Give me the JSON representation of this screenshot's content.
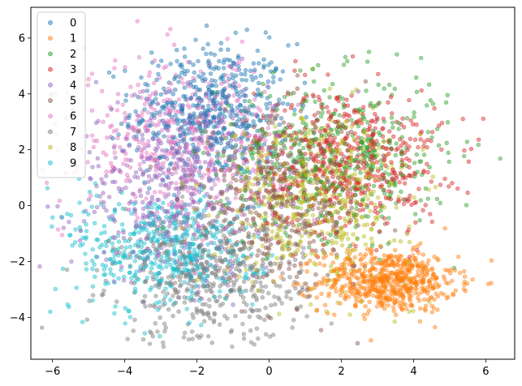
{
  "chart_data": {
    "type": "scatter",
    "title": "",
    "xlabel": "",
    "ylabel": "",
    "xlim": [
      -6.6,
      6.8
    ],
    "ylim": [
      -5.5,
      7.1
    ],
    "xticks": [
      -6,
      -4,
      -2,
      0,
      2,
      4,
      6
    ],
    "yticks": [
      -4,
      -2,
      0,
      2,
      4,
      6
    ],
    "xtick_labels": [
      "−6",
      "−4",
      "−2",
      "0",
      "2",
      "4",
      "6"
    ],
    "ytick_labels": [
      "−4",
      "−2",
      "0",
      "2",
      "4",
      "6"
    ],
    "grid": false,
    "legend_position": "top-left",
    "series": [
      {
        "name": "0",
        "color": "#1f77b4",
        "center": [
          -1.6,
          3.4
        ],
        "spread": [
          1.1,
          1.2
        ],
        "count": 520
      },
      {
        "name": "1",
        "color": "#ff7f0e",
        "center": [
          3.3,
          -2.7
        ],
        "spread": [
          0.95,
          0.55
        ],
        "count": 620
      },
      {
        "name": "2",
        "color": "#2ca02c",
        "center": [
          1.8,
          1.8
        ],
        "spread": [
          1.6,
          1.4
        ],
        "count": 480
      },
      {
        "name": "3",
        "color": "#d62728",
        "center": [
          2.2,
          1.6
        ],
        "spread": [
          1.3,
          1.3
        ],
        "count": 520
      },
      {
        "name": "4",
        "color": "#9467bd",
        "center": [
          -2.6,
          0.6
        ],
        "spread": [
          1.4,
          1.6
        ],
        "count": 480
      },
      {
        "name": "5",
        "color": "#8c564b",
        "center": [
          0.3,
          0.2
        ],
        "spread": [
          1.3,
          1.5
        ],
        "count": 430
      },
      {
        "name": "6",
        "color": "#e377c2",
        "center": [
          -2.4,
          2.4
        ],
        "spread": [
          1.4,
          1.4
        ],
        "count": 480
      },
      {
        "name": "7",
        "color": "#7f7f7f",
        "center": [
          -1.6,
          -2.6
        ],
        "spread": [
          1.3,
          1.2
        ],
        "count": 520
      },
      {
        "name": "8",
        "color": "#bcbd22",
        "center": [
          1.4,
          0.3
        ],
        "spread": [
          1.3,
          1.5
        ],
        "count": 480
      },
      {
        "name": "9",
        "color": "#17becf",
        "center": [
          -2.9,
          -1.6
        ],
        "spread": [
          1.3,
          1.1
        ],
        "count": 500
      }
    ]
  }
}
